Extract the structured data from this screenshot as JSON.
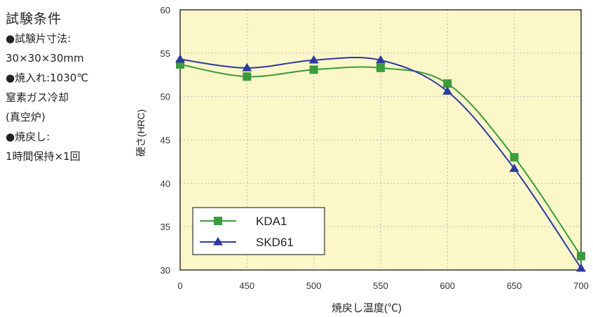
{
  "notes": {
    "title": "試験条件",
    "lines": [
      "●試験片寸法:",
      "30×30×30mm",
      "●焼入れ:1030℃",
      "窒素ガス冷却",
      "(真空炉)",
      "●焼戻し:",
      "1時間保持×1回"
    ]
  },
  "chart_data": {
    "type": "line",
    "xlabel": "焼戻し温度(℃)",
    "ylabel": "硬さ(HRC)",
    "x_ticks": [
      "0",
      "450",
      "500",
      "550",
      "600",
      "650",
      "700"
    ],
    "y_ticks": [
      30,
      35,
      40,
      45,
      50,
      55,
      60
    ],
    "ylim": [
      30,
      60
    ],
    "grid": true,
    "legend_position": "bottom-left",
    "colors": {
      "plot_bg": "#fbf7c9",
      "grid": "#bbbbbb",
      "KDA1": "#3a9c3a",
      "SKD61": "#2c3aa0"
    },
    "series": [
      {
        "name": "KDA1",
        "marker": "square",
        "x": [
          "0",
          "450",
          "500",
          "550",
          "600",
          "650",
          "700"
        ],
        "values": [
          53.7,
          52.3,
          53.1,
          53.3,
          51.5,
          43.0,
          31.6
        ]
      },
      {
        "name": "SKD61",
        "marker": "triangle",
        "x": [
          "0",
          "450",
          "500",
          "550",
          "600",
          "650",
          "700"
        ],
        "values": [
          54.3,
          53.3,
          54.2,
          54.2,
          50.6,
          41.7,
          30.2
        ]
      }
    ]
  }
}
